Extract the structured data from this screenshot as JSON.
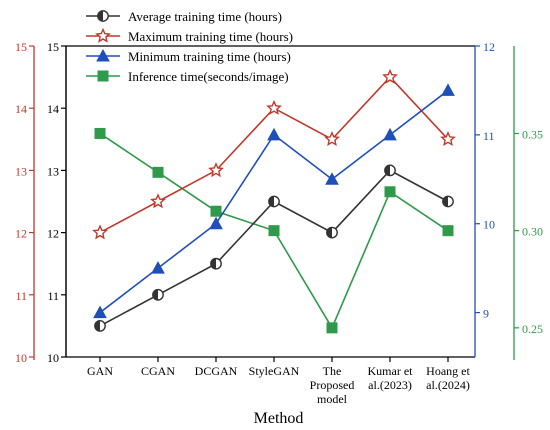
{
  "chart_data": {
    "type": "line",
    "xlabel": "Method",
    "categories": [
      [
        "GAN"
      ],
      [
        "CGAN"
      ],
      [
        "DCGAN"
      ],
      [
        "StyleGAN"
      ],
      [
        "The",
        "Proposed",
        "model"
      ],
      [
        "Kumar et",
        "al.(2023)"
      ],
      [
        "Hoang et",
        "al.(2024)"
      ]
    ],
    "axes": {
      "left_outer": {
        "ylim": [
          10,
          15
        ],
        "ticks": [
          "10",
          "11",
          "12",
          "13",
          "14",
          "15"
        ],
        "color": "#c0392b"
      },
      "left_inner": {
        "ylim": [
          10,
          15
        ],
        "ticks": [
          "10",
          "11",
          "12",
          "13",
          "14",
          "15"
        ],
        "color": "#000000"
      },
      "right_inner": {
        "ylim": [
          8.5,
          12
        ],
        "ticks": [
          "9",
          "10",
          "11",
          "12"
        ],
        "color": "#1f4fb8"
      },
      "right_outer": {
        "ylim": [
          0.235,
          0.395
        ],
        "ticks": [
          "0.25",
          "0.30",
          "0.35"
        ],
        "color": "#2e9a4a"
      }
    },
    "series": [
      {
        "name": "Average training time (hours)",
        "axis": "left_inner",
        "color": "#333333",
        "marker": "half-circle",
        "values": [
          10.5,
          11.0,
          11.5,
          12.5,
          12.0,
          13.0,
          12.5
        ]
      },
      {
        "name": "Maximum training time (hours)",
        "axis": "left_outer",
        "color": "#c0392b",
        "marker": "star",
        "values": [
          12.0,
          12.5,
          13.0,
          14.0,
          13.5,
          14.5,
          13.5
        ]
      },
      {
        "name": "Minimum training time (hours)",
        "axis": "right_inner",
        "color": "#1f4fb8",
        "marker": "triangle",
        "values": [
          9.0,
          9.5,
          10.0,
          11.0,
          10.5,
          11.0,
          11.5
        ]
      },
      {
        "name": "Inference time(seconds/image)",
        "axis": "right_outer",
        "color": "#2e9a4a",
        "marker": "square",
        "values": [
          0.35,
          0.33,
          0.31,
          0.3,
          0.25,
          0.32,
          0.3
        ]
      }
    ],
    "legend_position": "top-left"
  }
}
